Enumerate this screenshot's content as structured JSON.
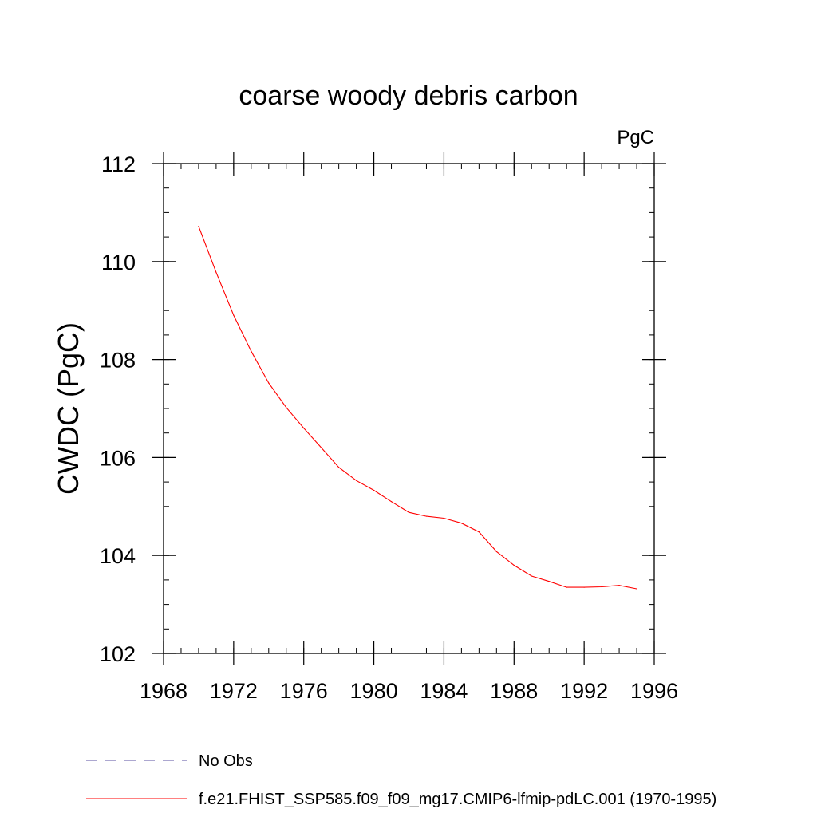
{
  "chart_data": {
    "type": "line",
    "title": "coarse woody debris carbon",
    "units_label": "PgC",
    "xlabel": "",
    "ylabel": "CWDC  (PgC)",
    "xlim": [
      1968,
      1996
    ],
    "ylim": [
      102,
      112
    ],
    "x_ticks": [
      1968,
      1972,
      1976,
      1980,
      1984,
      1988,
      1992,
      1996
    ],
    "y_ticks": [
      102,
      104,
      106,
      108,
      110,
      112
    ],
    "x_minor_step": 1,
    "y_minor_step": 0.5,
    "grid": false,
    "legend_position": "bottom",
    "series": [
      {
        "name": "No Obs",
        "color": "#5a4fa0",
        "style": "dashed",
        "x": [],
        "y": []
      },
      {
        "name": "f.e21.FHIST_SSP585.f09_f09_mg17.CMIP6-lfmip-pdLC.001 (1970-1995)",
        "color": "#ff0000",
        "style": "solid",
        "x": [
          1970,
          1971,
          1972,
          1973,
          1974,
          1975,
          1976,
          1977,
          1978,
          1979,
          1980,
          1981,
          1982,
          1983,
          1984,
          1985,
          1986,
          1987,
          1988,
          1989,
          1990,
          1991,
          1992,
          1993,
          1994,
          1995
        ],
        "y": [
          110.72,
          109.78,
          108.9,
          108.17,
          107.52,
          107.02,
          106.6,
          106.2,
          105.8,
          105.53,
          105.33,
          105.1,
          104.88,
          104.8,
          104.76,
          104.66,
          104.48,
          104.08,
          103.8,
          103.58,
          103.47,
          103.35,
          103.35,
          103.36,
          103.39,
          103.32
        ]
      }
    ]
  }
}
